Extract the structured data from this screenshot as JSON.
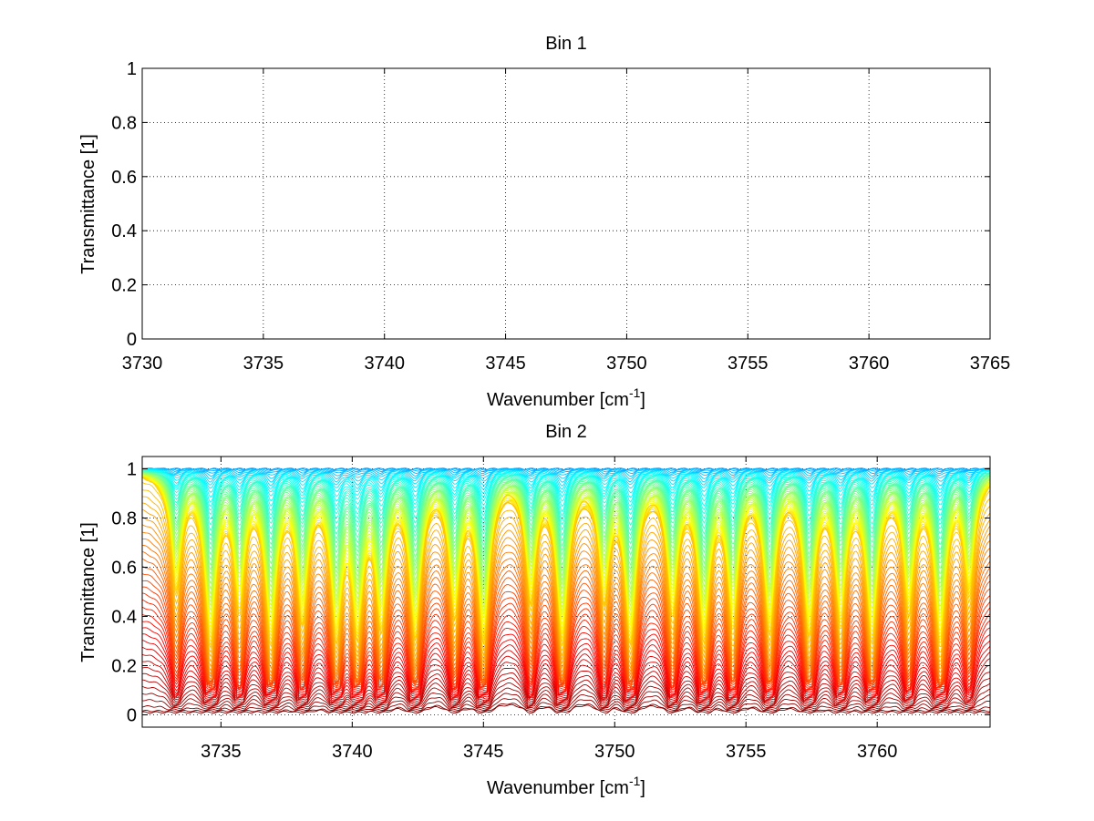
{
  "chart_data": [
    {
      "type": "line",
      "title": "Bin 1",
      "xlabel": "Wavenumber [cm",
      "xlabel_sup": "-1",
      "xlabel_end": "]",
      "ylabel": "Transmittance [1]",
      "xlim": [
        3730,
        3765
      ],
      "ylim": [
        0,
        1
      ],
      "xticks": [
        3730,
        3735,
        3740,
        3745,
        3750,
        3755,
        3760,
        3765
      ],
      "yticks": [
        0,
        0.2,
        0.4,
        0.6,
        0.8,
        1
      ],
      "xtick_labels": [
        "3730",
        "3735",
        "3740",
        "3745",
        "3750",
        "3755",
        "3760",
        "3765"
      ],
      "ytick_labels": [
        "0",
        "0.2",
        "0.4",
        "0.6",
        "0.8",
        "1"
      ],
      "grid": true,
      "series": []
    },
    {
      "type": "line",
      "title": "Bin 2",
      "xlabel": "Wavenumber [cm",
      "xlabel_sup": "-1",
      "xlabel_end": "]",
      "ylabel": "Transmittance [1]",
      "xlim": [
        3732,
        3764.3
      ],
      "ylim": [
        -0.05,
        1.05
      ],
      "xticks": [
        3735,
        3740,
        3745,
        3750,
        3755,
        3760
      ],
      "yticks": [
        0,
        0.2,
        0.4,
        0.6,
        0.8,
        1
      ],
      "xtick_labels": [
        "3735",
        "3740",
        "3745",
        "3750",
        "3755",
        "3760"
      ],
      "ytick_labels": [
        "0",
        "0.2",
        "0.4",
        "0.6",
        "0.8",
        "1"
      ],
      "grid": true,
      "colormap": "jet",
      "absorption_lines": [
        3733.3,
        3734.6,
        3735.7,
        3736.9,
        3738.1,
        3739.4,
        3740.2,
        3741.1,
        3742.4,
        3743.9,
        3745.0,
        3746.8,
        3748.0,
        3749.6,
        3750.6,
        3752.2,
        3753.4,
        3754.5,
        3755.9,
        3757.4,
        3758.6,
        3759.8,
        3761.2,
        3762.4,
        3763.5
      ],
      "series_count": 80,
      "series_summary": "Family of ~80 transmittance spectra (blue = high transmittance ~1.0, through yellow/orange, to dark red ~0) with deep absorption dips at regularly spaced wavenumbers"
    }
  ]
}
